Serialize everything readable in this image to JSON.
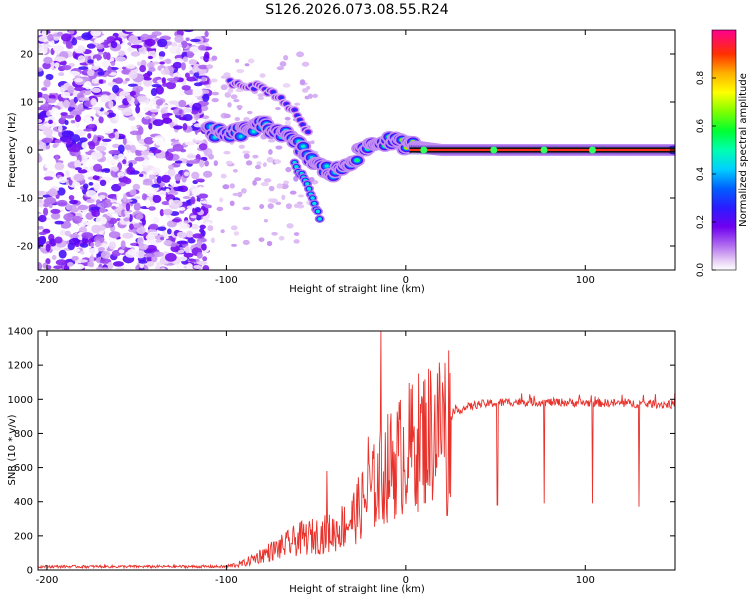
{
  "title": "S126.2026.073.08.55.R24",
  "colors": {
    "snr_line": "#e8322c",
    "spectral_line": "#111111",
    "axis": "#000000"
  },
  "colorbar": {
    "label": "Normalized spectral amplitude",
    "ticks": [
      0.0,
      0.2,
      0.4,
      0.6,
      0.8
    ],
    "tick_labels": [
      "0.0",
      "0.2",
      "0.4",
      "0.6",
      "0.8"
    ],
    "range": [
      0,
      1
    ]
  },
  "chart_data": [
    {
      "type": "heatmap",
      "name": "spectrogram",
      "xlabel": "Height of straight line (km)",
      "ylabel": "Frequency (Hz)",
      "xlim": [
        -205,
        150
      ],
      "ylim": [
        -25,
        25
      ],
      "xticks": [
        -200,
        -100,
        0,
        100
      ],
      "yticks": [
        20,
        10,
        0,
        -10,
        -20
      ],
      "xtick_labels": [
        "-200",
        "-100",
        "0",
        "100"
      ],
      "ytick_labels": [
        "20",
        "10",
        "0",
        "-10",
        "-20"
      ],
      "noise_region_x": [
        -205,
        -110
      ],
      "signal_ridge": [
        {
          "x": -110,
          "f": 4,
          "amp": 0.45
        },
        {
          "x": -100,
          "f": 3,
          "amp": 0.5
        },
        {
          "x": -90,
          "f": 4,
          "amp": 0.45
        },
        {
          "x": -80,
          "f": 5,
          "amp": 0.5
        },
        {
          "x": -70,
          "f": 4,
          "amp": 0.55
        },
        {
          "x": -60,
          "f": 1,
          "amp": 0.5
        },
        {
          "x": -50,
          "f": -3,
          "amp": 0.45
        },
        {
          "x": -40,
          "f": -5,
          "amp": 0.5
        },
        {
          "x": -30,
          "f": -2,
          "amp": 0.55
        },
        {
          "x": -20,
          "f": 1,
          "amp": 0.6
        },
        {
          "x": -10,
          "f": 2,
          "amp": 0.7
        },
        {
          "x": 0,
          "f": 1,
          "amp": 0.8
        },
        {
          "x": 20,
          "f": 0,
          "amp": 0.9
        },
        {
          "x": 60,
          "f": 0,
          "amp": 0.95
        },
        {
          "x": 100,
          "f": 0,
          "amp": 0.95
        },
        {
          "x": 150,
          "f": 0,
          "amp": 0.95
        }
      ],
      "branch_upper": [
        {
          "x": -95,
          "f": 14
        },
        {
          "x": -80,
          "f": 13
        },
        {
          "x": -70,
          "f": 11
        },
        {
          "x": -60,
          "f": 7
        },
        {
          "x": -55,
          "f": 4
        }
      ],
      "branch_lower": [
        {
          "x": -62,
          "f": -3
        },
        {
          "x": -55,
          "f": -7
        },
        {
          "x": -50,
          "f": -12
        },
        {
          "x": -48,
          "f": -14
        }
      ]
    },
    {
      "type": "line",
      "name": "snr",
      "xlabel": "Height of straight line (km)",
      "ylabel": "SNR (10 * v/v)",
      "xlim": [
        -205,
        150
      ],
      "ylim": [
        0,
        1400
      ],
      "xticks": [
        -200,
        -100,
        0,
        100
      ],
      "yticks": [
        0,
        200,
        400,
        600,
        800,
        1000,
        1200,
        1400
      ],
      "xtick_labels": [
        "-200",
        "-100",
        "0",
        "100"
      ],
      "ytick_labels": [
        "0",
        "200",
        "400",
        "600",
        "800",
        "1000",
        "1200",
        "1400"
      ],
      "envelope": [
        {
          "x": -205,
          "y": 20
        },
        {
          "x": -100,
          "y": 20
        },
        {
          "x": -90,
          "y": 40
        },
        {
          "x": -80,
          "y": 90
        },
        {
          "x": -70,
          "y": 130
        },
        {
          "x": -60,
          "y": 180
        },
        {
          "x": -50,
          "y": 200
        },
        {
          "x": -40,
          "y": 220
        },
        {
          "x": -30,
          "y": 300
        },
        {
          "x": -20,
          "y": 450
        },
        {
          "x": -10,
          "y": 600
        },
        {
          "x": 0,
          "y": 700
        },
        {
          "x": 10,
          "y": 780
        },
        {
          "x": 20,
          "y": 860
        },
        {
          "x": 30,
          "y": 940
        },
        {
          "x": 40,
          "y": 970
        },
        {
          "x": 60,
          "y": 985
        },
        {
          "x": 100,
          "y": 980
        },
        {
          "x": 150,
          "y": 970
        }
      ],
      "spikes": [
        {
          "x": -14,
          "y": 1400
        },
        {
          "x": -44,
          "y": 580
        },
        {
          "x": -21,
          "y": 780
        },
        {
          "x": 23,
          "y": 320
        },
        {
          "x": 51,
          "y": 380
        },
        {
          "x": 77,
          "y": 390
        },
        {
          "x": 104,
          "y": 390
        },
        {
          "x": 130,
          "y": 370
        }
      ]
    }
  ]
}
